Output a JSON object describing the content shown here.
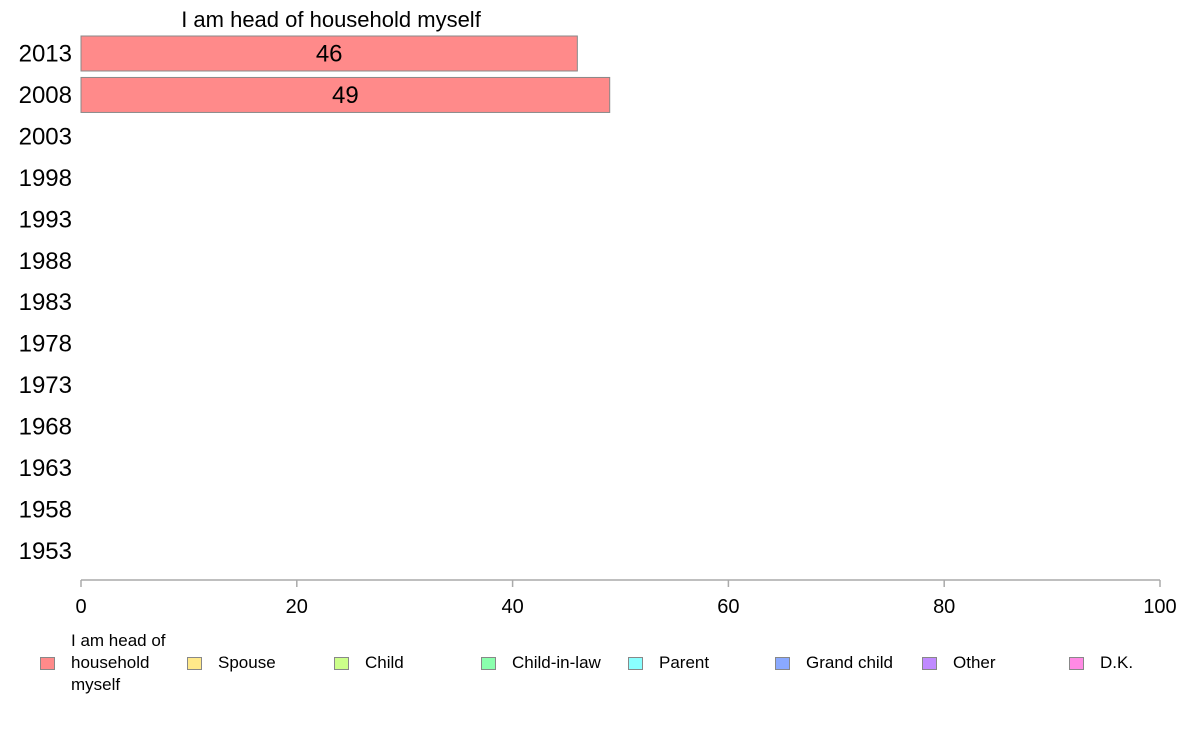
{
  "chart_data": {
    "type": "bar",
    "orientation": "horizontal",
    "stacked": true,
    "title": "I am head of household myself",
    "categories": [
      "2013",
      "2008",
      "2003",
      "1998",
      "1993",
      "1988",
      "1983",
      "1978",
      "1973",
      "1968",
      "1963",
      "1958",
      "1953"
    ],
    "series": [
      {
        "name": "I am head of household myself",
        "color": "#ff8a8a",
        "values": [
          46,
          49,
          null,
          null,
          null,
          null,
          null,
          null,
          null,
          null,
          null,
          null,
          null
        ]
      }
    ],
    "xlim": [
      0,
      100
    ],
    "xticks": [
      0,
      20,
      40,
      60,
      80,
      100
    ],
    "grid": false,
    "legend": {
      "placement": "bottom",
      "entries": [
        {
          "label": "I am head of household myself",
          "color": "#ff8a8a"
        },
        {
          "label": "Spouse",
          "color": "#ffe98a"
        },
        {
          "label": "Child",
          "color": "#ccff8a"
        },
        {
          "label": "Child-in-law",
          "color": "#8affad"
        },
        {
          "label": "Parent",
          "color": "#8affff"
        },
        {
          "label": "Grand child",
          "color": "#8aa9ff"
        },
        {
          "label": "Other",
          "color": "#c08aff"
        },
        {
          "label": "D.K.",
          "color": "#ff8ae4"
        }
      ]
    }
  }
}
